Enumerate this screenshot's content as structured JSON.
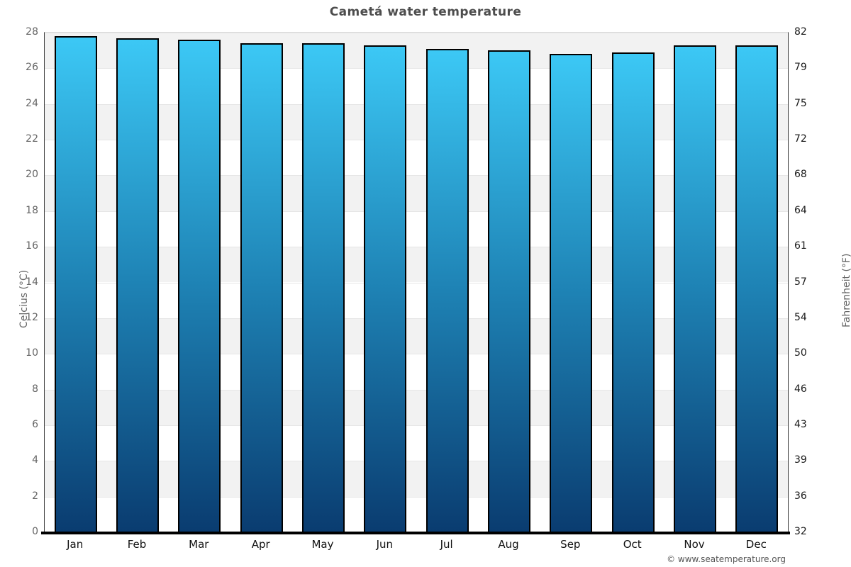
{
  "page": {
    "title": "Cametá water temperature",
    "attribution": "© www.seatemperature.org"
  },
  "chart_data": {
    "type": "bar",
    "title": "Cametá water temperature",
    "categories": [
      "Jan",
      "Feb",
      "Mar",
      "Apr",
      "May",
      "Jun",
      "Jul",
      "Aug",
      "Sep",
      "Oct",
      "Nov",
      "Dec"
    ],
    "values": [
      27.8,
      27.7,
      27.6,
      27.4,
      27.4,
      27.3,
      27.1,
      27.0,
      26.8,
      26.9,
      27.3,
      27.3
    ],
    "unit": "°C",
    "ylabel_left": "Celcius (°C)",
    "ylabel_right": "Fahrenheit (°F)",
    "ylim_left": [
      0,
      28
    ],
    "ylim_right": [
      32,
      82
    ],
    "yticks_left": [
      0,
      2,
      4,
      6,
      8,
      10,
      12,
      14,
      16,
      18,
      20,
      22,
      24,
      26,
      28
    ],
    "yticks_right": [
      "32",
      "36",
      "39",
      "43",
      "46",
      "50",
      "54",
      "57",
      "61",
      "64",
      "68",
      "72",
      "75",
      "79",
      "82"
    ],
    "grid": "alternating-horizontal-bands",
    "legend": "none",
    "colors": {
      "bar_gradient_top": "#3cc8f5",
      "bar_gradient_mid": "#1e82b4",
      "bar_gradient_bottom": "#0a3c70",
      "bar_border": "#000000",
      "band_shaded": "#f2f2f2",
      "band_plain": "#ffffff",
      "title_text": "#4d4d4d",
      "axis_line": "#000000"
    }
  }
}
